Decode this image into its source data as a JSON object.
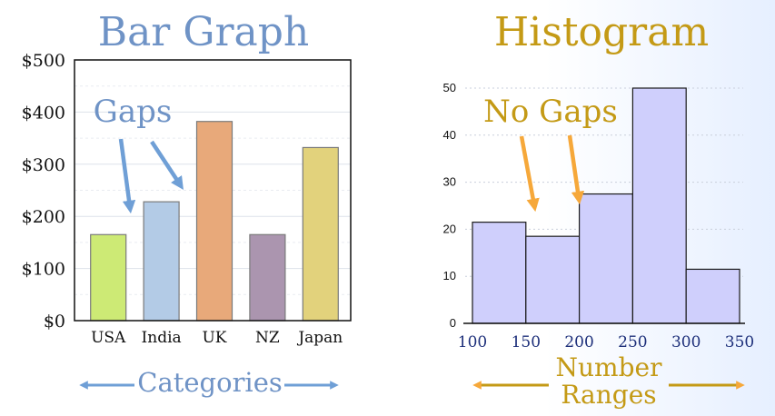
{
  "chart_data": [
    {
      "type": "bar",
      "title": "Bar Graph",
      "categories": [
        "USA",
        "India",
        "UK",
        "NZ",
        "Japan"
      ],
      "values": [
        165,
        228,
        382,
        165,
        332
      ],
      "colors": [
        "#cdea75",
        "#b3cbe6",
        "#e8a97a",
        "#ab95af",
        "#e2d27c"
      ],
      "yticks": [
        "$0",
        "$100",
        "$200",
        "$300",
        "$400",
        "$500"
      ],
      "ylim": [
        0,
        500
      ],
      "xlabel": "Categories",
      "annotation": "Gaps",
      "grid": true
    },
    {
      "type": "bar",
      "title": "Histogram",
      "bins": [
        [
          100,
          150
        ],
        [
          150,
          200
        ],
        [
          200,
          250
        ],
        [
          250,
          300
        ],
        [
          300,
          350
        ]
      ],
      "values": [
        21.5,
        18.5,
        27.5,
        50,
        11.5
      ],
      "color": "#cfcffc",
      "yticks": [
        "0",
        "10",
        "20",
        "30",
        "40",
        "50"
      ],
      "ylim": [
        0,
        50
      ],
      "xticks": [
        "100",
        "150",
        "200",
        "250",
        "300",
        "350"
      ],
      "xlabel_lines": [
        "Number",
        "Ranges"
      ],
      "annotation": "No Gaps",
      "grid": true
    }
  ]
}
